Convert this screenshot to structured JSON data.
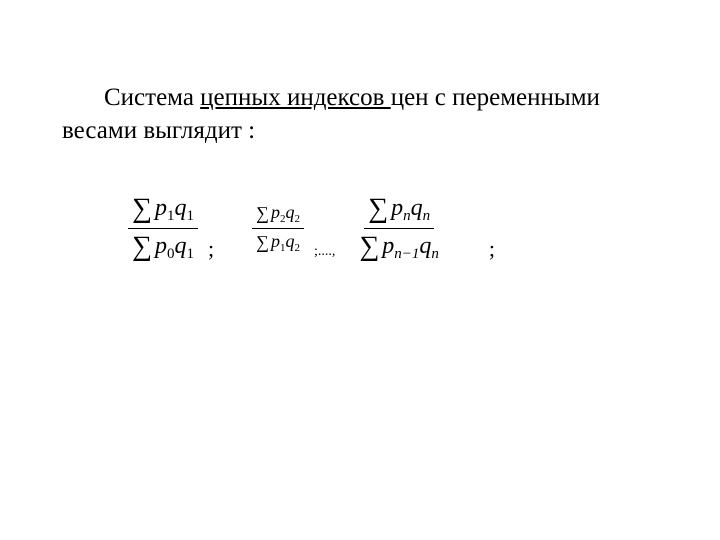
{
  "text": {
    "plain1": "Система ",
    "underlined": "цепных индексов ",
    "plain2": "цен с переменными весами выглядит :"
  },
  "formula": {
    "frac1": {
      "num": {
        "sigma": "∑",
        "p": "p",
        "psub": "1",
        "q": "q",
        "qsub": "1"
      },
      "den": {
        "sigma": "∑",
        "p": "p",
        "psub": "0",
        "q": "q",
        "qsub": "1"
      }
    },
    "sep1": ";",
    "frac2": {
      "num": {
        "sigma": "∑",
        "p": "p",
        "psub": "2",
        "q": "q",
        "qsub": "2"
      },
      "den": {
        "sigma": "∑",
        "p": "p",
        "psub": "1",
        "q": "q",
        "qsub": "2"
      }
    },
    "sep2": ";....,",
    "frac3": {
      "num": {
        "sigma": "∑",
        "p": "p",
        "psub": "n",
        "q": "q",
        "qsub": "n"
      },
      "den": {
        "sigma": "∑",
        "p": "p",
        "psub": "n−1",
        "q": "q",
        "qsub": "n"
      }
    },
    "sep3": ";"
  },
  "style": {
    "bg": "#ffffff",
    "fg": "#000000",
    "body_fontsize": 25,
    "formula_large_fontsize": 24,
    "formula_small_fontsize": 18
  }
}
